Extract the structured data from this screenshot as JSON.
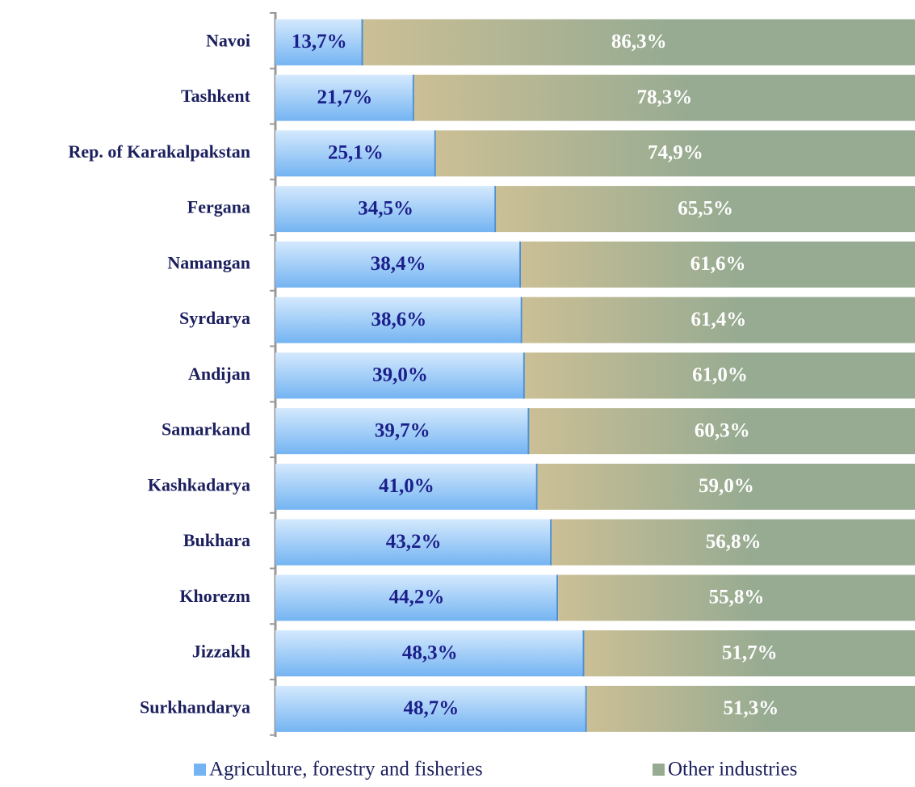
{
  "chart_data": {
    "type": "stacked-bar-horizontal",
    "categories": [
      "Navoi",
      "Tashkent",
      "Rep. of Karakalpakstan",
      "Fergana",
      "Namangan",
      "Syrdarya",
      "Andijan",
      "Samarkand",
      "Kashkadarya",
      "Bukhara",
      "Khorezm",
      "Jizzakh",
      "Surkhandarya"
    ],
    "xlim": [
      0,
      100
    ],
    "series": [
      {
        "name": "Agriculture, forestry and fisheries",
        "color": "#74b4f2",
        "values": [
          13.7,
          21.7,
          25.1,
          34.5,
          38.4,
          38.6,
          39.0,
          39.7,
          41.0,
          43.2,
          44.2,
          48.3,
          48.7
        ],
        "value_labels": [
          "13,7%",
          "21,7%",
          "25,1%",
          "34,5%",
          "38,4%",
          "38,6%",
          "39,0%",
          "39,7%",
          "41,0%",
          "43,2%",
          "44,2%",
          "48,3%",
          "48,7%"
        ]
      },
      {
        "name": "Other industries",
        "color": "#97ab92",
        "values": [
          86.3,
          78.3,
          74.9,
          65.5,
          61.6,
          61.4,
          61.0,
          60.3,
          59.0,
          56.8,
          55.8,
          51.7,
          51.3
        ],
        "value_labels": [
          "86,3%",
          "78,3%",
          "74,9%",
          "65,5%",
          "61,6%",
          "61,4%",
          "61,0%",
          "60,3%",
          "59,0%",
          "56,8%",
          "55,8%",
          "51,7%",
          "51,3%"
        ]
      }
    ],
    "legend": "bottom"
  }
}
